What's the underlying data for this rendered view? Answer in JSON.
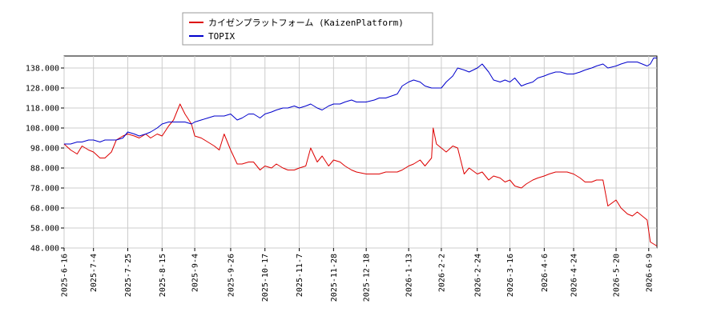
{
  "chart_data": {
    "type": "line",
    "title": "",
    "xlabel": "",
    "ylabel": "",
    "ylim": [
      48.0,
      144.0
    ],
    "grid": true,
    "legend_position": "top-left",
    "y_ticks": [
      "48.000",
      "58.000",
      "68.000",
      "78.000",
      "88.000",
      "98.000",
      "108.000",
      "118.000",
      "128.000",
      "138.000"
    ],
    "x_ticks": [
      {
        "label": "2025-6-16",
        "date": "2025-06-16"
      },
      {
        "label": "2025-7-4",
        "date": "2025-07-04"
      },
      {
        "label": "2025-7-25",
        "date": "2025-07-25"
      },
      {
        "label": "2025-8-15",
        "date": "2025-08-15"
      },
      {
        "label": "2025-9-4",
        "date": "2025-09-04"
      },
      {
        "label": "2025-9-26",
        "date": "2025-09-26"
      },
      {
        "label": "2025-10-17",
        "date": "2025-10-17"
      },
      {
        "label": "2025-11-7",
        "date": "2025-11-07"
      },
      {
        "label": "2025-11-28",
        "date": "2025-11-28"
      },
      {
        "label": "2025-12-18",
        "date": "2025-12-18"
      },
      {
        "label": "2026-1-13",
        "date": "2026-01-13"
      },
      {
        "label": "2026-2-2",
        "date": "2026-02-02"
      },
      {
        "label": "2026-2-24",
        "date": "2026-02-24"
      },
      {
        "label": "2026-3-16",
        "date": "2026-03-16"
      },
      {
        "label": "2026-4-6",
        "date": "2026-04-06"
      },
      {
        "label": "2026-4-24",
        "date": "2026-04-24"
      },
      {
        "label": "2026-5-20",
        "date": "2026-05-20"
      },
      {
        "label": "2026-6-9",
        "date": "2026-06-09"
      }
    ],
    "x_range": [
      "2025-06-16",
      "2026-06-14"
    ],
    "series": [
      {
        "name": "カイゼンプラットフォーム (KaizenPlatform)",
        "color": "#dd0000",
        "points": [
          [
            "2025-06-16",
            100
          ],
          [
            "2025-06-20",
            97
          ],
          [
            "2025-06-24",
            95
          ],
          [
            "2025-06-27",
            99
          ],
          [
            "2025-07-01",
            97
          ],
          [
            "2025-07-04",
            96
          ],
          [
            "2025-07-08",
            93
          ],
          [
            "2025-07-11",
            93
          ],
          [
            "2025-07-15",
            96
          ],
          [
            "2025-07-18",
            102
          ],
          [
            "2025-07-22",
            104
          ],
          [
            "2025-07-25",
            105
          ],
          [
            "2025-07-29",
            104
          ],
          [
            "2025-08-01",
            103
          ],
          [
            "2025-08-05",
            105
          ],
          [
            "2025-08-08",
            103
          ],
          [
            "2025-08-12",
            105
          ],
          [
            "2025-08-15",
            104
          ],
          [
            "2025-08-19",
            109
          ],
          [
            "2025-08-22",
            112
          ],
          [
            "2025-08-26",
            120
          ],
          [
            "2025-08-29",
            115
          ],
          [
            "2025-09-02",
            110
          ],
          [
            "2025-09-04",
            104
          ],
          [
            "2025-09-08",
            103
          ],
          [
            "2025-09-12",
            101
          ],
          [
            "2025-09-16",
            99
          ],
          [
            "2025-09-19",
            97
          ],
          [
            "2025-09-22",
            105
          ],
          [
            "2025-09-26",
            97
          ],
          [
            "2025-09-30",
            90
          ],
          [
            "2025-10-03",
            90
          ],
          [
            "2025-10-07",
            91
          ],
          [
            "2025-10-10",
            91
          ],
          [
            "2025-10-14",
            87
          ],
          [
            "2025-10-17",
            89
          ],
          [
            "2025-10-21",
            88
          ],
          [
            "2025-10-24",
            90
          ],
          [
            "2025-10-28",
            88
          ],
          [
            "2025-10-31",
            87
          ],
          [
            "2025-11-04",
            87
          ],
          [
            "2025-11-07",
            88
          ],
          [
            "2025-11-11",
            89
          ],
          [
            "2025-11-14",
            98
          ],
          [
            "2025-11-18",
            91
          ],
          [
            "2025-11-21",
            94
          ],
          [
            "2025-11-25",
            89
          ],
          [
            "2025-11-28",
            92
          ],
          [
            "2025-12-02",
            91
          ],
          [
            "2025-12-05",
            89
          ],
          [
            "2025-12-09",
            87
          ],
          [
            "2025-12-12",
            86
          ],
          [
            "2025-12-18",
            85
          ],
          [
            "2025-12-23",
            85
          ],
          [
            "2025-12-26",
            85
          ],
          [
            "2025-12-30",
            86
          ],
          [
            "2026-01-06",
            86
          ],
          [
            "2026-01-09",
            87
          ],
          [
            "2026-01-13",
            89
          ],
          [
            "2026-01-16",
            90
          ],
          [
            "2026-01-20",
            92
          ],
          [
            "2026-01-23",
            89
          ],
          [
            "2026-01-27",
            93
          ],
          [
            "2026-01-28",
            108
          ],
          [
            "2026-01-30",
            100
          ],
          [
            "2026-02-02",
            98
          ],
          [
            "2026-02-05",
            96
          ],
          [
            "2026-02-09",
            99
          ],
          [
            "2026-02-12",
            98
          ],
          [
            "2026-02-16",
            85
          ],
          [
            "2026-02-19",
            88
          ],
          [
            "2026-02-24",
            85
          ],
          [
            "2026-02-27",
            86
          ],
          [
            "2026-03-03",
            82
          ],
          [
            "2026-03-06",
            84
          ],
          [
            "2026-03-10",
            83
          ],
          [
            "2026-03-13",
            81
          ],
          [
            "2026-03-16",
            82
          ],
          [
            "2026-03-19",
            79
          ],
          [
            "2026-03-23",
            78
          ],
          [
            "2026-03-26",
            80
          ],
          [
            "2026-03-30",
            82
          ],
          [
            "2026-04-02",
            83
          ],
          [
            "2026-04-06",
            84
          ],
          [
            "2026-04-09",
            85
          ],
          [
            "2026-04-13",
            86
          ],
          [
            "2026-04-16",
            86
          ],
          [
            "2026-04-20",
            86
          ],
          [
            "2026-04-24",
            85
          ],
          [
            "2026-04-28",
            83
          ],
          [
            "2026-05-01",
            81
          ],
          [
            "2026-05-05",
            81
          ],
          [
            "2026-05-08",
            82
          ],
          [
            "2026-05-12",
            82
          ],
          [
            "2026-05-15",
            69
          ],
          [
            "2026-05-20",
            72
          ],
          [
            "2026-05-23",
            68
          ],
          [
            "2026-05-27",
            65
          ],
          [
            "2026-05-30",
            64
          ],
          [
            "2026-06-02",
            66
          ],
          [
            "2026-06-05",
            64
          ],
          [
            "2026-06-08",
            62
          ],
          [
            "2026-06-10",
            51
          ],
          [
            "2026-06-12",
            50
          ],
          [
            "2026-06-14",
            49
          ]
        ]
      },
      {
        "name": "TOPIX",
        "color": "#0000cc",
        "points": [
          [
            "2025-06-16",
            100
          ],
          [
            "2025-06-20",
            100
          ],
          [
            "2025-06-24",
            101
          ],
          [
            "2025-06-27",
            101
          ],
          [
            "2025-07-01",
            102
          ],
          [
            "2025-07-04",
            102
          ],
          [
            "2025-07-08",
            101
          ],
          [
            "2025-07-11",
            102
          ],
          [
            "2025-07-15",
            102
          ],
          [
            "2025-07-18",
            102
          ],
          [
            "2025-07-22",
            103
          ],
          [
            "2025-07-25",
            106
          ],
          [
            "2025-07-29",
            105
          ],
          [
            "2025-08-01",
            104
          ],
          [
            "2025-08-05",
            105
          ],
          [
            "2025-08-08",
            106
          ],
          [
            "2025-08-12",
            108
          ],
          [
            "2025-08-15",
            110
          ],
          [
            "2025-08-19",
            111
          ],
          [
            "2025-08-22",
            111
          ],
          [
            "2025-08-26",
            111
          ],
          [
            "2025-08-29",
            111
          ],
          [
            "2025-09-02",
            110
          ],
          [
            "2025-09-04",
            111
          ],
          [
            "2025-09-08",
            112
          ],
          [
            "2025-09-12",
            113
          ],
          [
            "2025-09-16",
            114
          ],
          [
            "2025-09-19",
            114
          ],
          [
            "2025-09-22",
            114
          ],
          [
            "2025-09-26",
            115
          ],
          [
            "2025-09-30",
            112
          ],
          [
            "2025-10-03",
            113
          ],
          [
            "2025-10-07",
            115
          ],
          [
            "2025-10-10",
            115
          ],
          [
            "2025-10-14",
            113
          ],
          [
            "2025-10-17",
            115
          ],
          [
            "2025-10-21",
            116
          ],
          [
            "2025-10-24",
            117
          ],
          [
            "2025-10-28",
            118
          ],
          [
            "2025-10-31",
            118
          ],
          [
            "2025-11-04",
            119
          ],
          [
            "2025-11-07",
            118
          ],
          [
            "2025-11-11",
            119
          ],
          [
            "2025-11-14",
            120
          ],
          [
            "2025-11-18",
            118
          ],
          [
            "2025-11-21",
            117
          ],
          [
            "2025-11-25",
            119
          ],
          [
            "2025-11-28",
            120
          ],
          [
            "2025-12-02",
            120
          ],
          [
            "2025-12-05",
            121
          ],
          [
            "2025-12-09",
            122
          ],
          [
            "2025-12-12",
            121
          ],
          [
            "2025-12-18",
            121
          ],
          [
            "2025-12-23",
            122
          ],
          [
            "2025-12-26",
            123
          ],
          [
            "2025-12-30",
            123
          ],
          [
            "2026-01-06",
            125
          ],
          [
            "2026-01-09",
            129
          ],
          [
            "2026-01-13",
            131
          ],
          [
            "2026-01-16",
            132
          ],
          [
            "2026-01-20",
            131
          ],
          [
            "2026-01-23",
            129
          ],
          [
            "2026-01-27",
            128
          ],
          [
            "2026-01-30",
            128
          ],
          [
            "2026-02-02",
            128
          ],
          [
            "2026-02-05",
            131
          ],
          [
            "2026-02-09",
            134
          ],
          [
            "2026-02-12",
            138
          ],
          [
            "2026-02-16",
            137
          ],
          [
            "2026-02-19",
            136
          ],
          [
            "2026-02-24",
            138
          ],
          [
            "2026-02-27",
            140
          ],
          [
            "2026-03-03",
            136
          ],
          [
            "2026-03-06",
            132
          ],
          [
            "2026-03-10",
            131
          ],
          [
            "2026-03-13",
            132
          ],
          [
            "2026-03-16",
            131
          ],
          [
            "2026-03-19",
            133
          ],
          [
            "2026-03-23",
            129
          ],
          [
            "2026-03-26",
            130
          ],
          [
            "2026-03-30",
            131
          ],
          [
            "2026-04-02",
            133
          ],
          [
            "2026-04-06",
            134
          ],
          [
            "2026-04-09",
            135
          ],
          [
            "2026-04-13",
            136
          ],
          [
            "2026-04-16",
            136
          ],
          [
            "2026-04-20",
            135
          ],
          [
            "2026-04-24",
            135
          ],
          [
            "2026-04-28",
            136
          ],
          [
            "2026-05-01",
            137
          ],
          [
            "2026-05-05",
            138
          ],
          [
            "2026-05-08",
            139
          ],
          [
            "2026-05-12",
            140
          ],
          [
            "2026-05-15",
            138
          ],
          [
            "2026-05-20",
            139
          ],
          [
            "2026-05-23",
            140
          ],
          [
            "2026-05-27",
            141
          ],
          [
            "2026-05-30",
            141
          ],
          [
            "2026-06-02",
            141
          ],
          [
            "2026-06-05",
            140
          ],
          [
            "2026-06-08",
            139
          ],
          [
            "2026-06-10",
            140
          ],
          [
            "2026-06-12",
            143
          ],
          [
            "2026-06-14",
            143
          ]
        ]
      }
    ]
  }
}
